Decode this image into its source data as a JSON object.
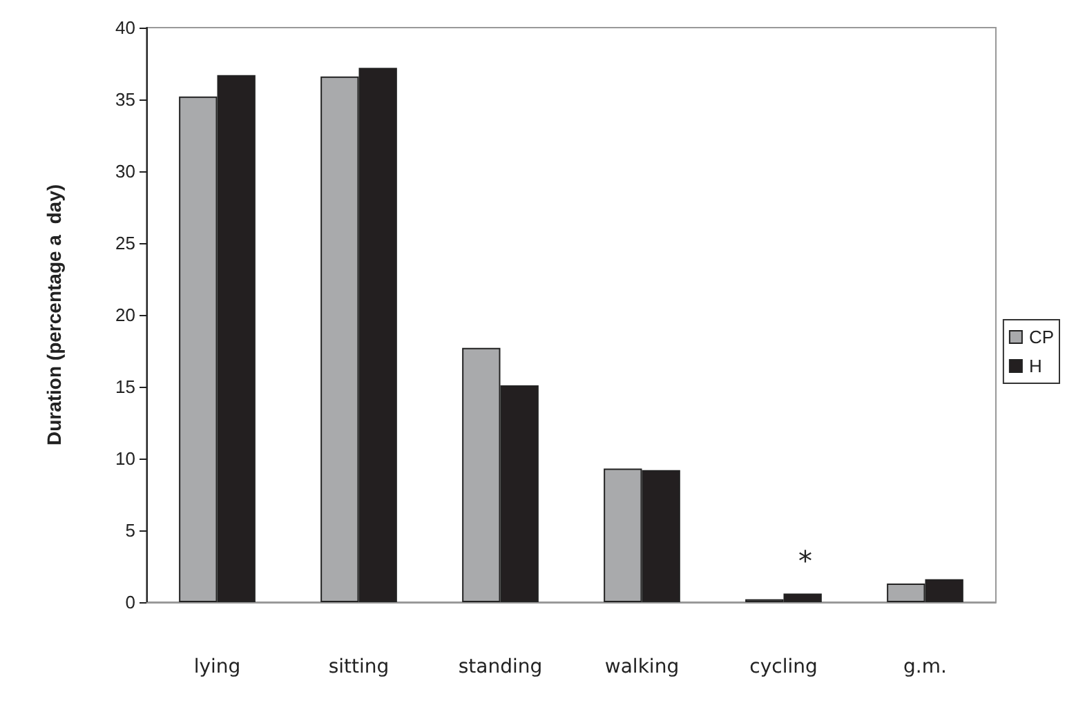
{
  "chart_data": {
    "type": "bar",
    "ylabel": "Duration (percentage a  day)",
    "categories": [
      "lying",
      "sitting",
      "standing",
      "walking",
      "cycling",
      "g.m."
    ],
    "series": [
      {
        "name": "CP",
        "color": "#a9aaac",
        "values": [
          35.2,
          36.6,
          17.7,
          9.3,
          0.2,
          1.3
        ]
      },
      {
        "name": "H",
        "color": "#231f20",
        "values": [
          36.7,
          37.2,
          15.1,
          9.2,
          0.6,
          1.6
        ]
      }
    ],
    "ylim": [
      0,
      40
    ],
    "yticks": [
      0,
      5,
      10,
      15,
      20,
      25,
      30,
      35,
      40
    ],
    "grid": false,
    "legend": "right",
    "annotations": [
      "*"
    ]
  }
}
